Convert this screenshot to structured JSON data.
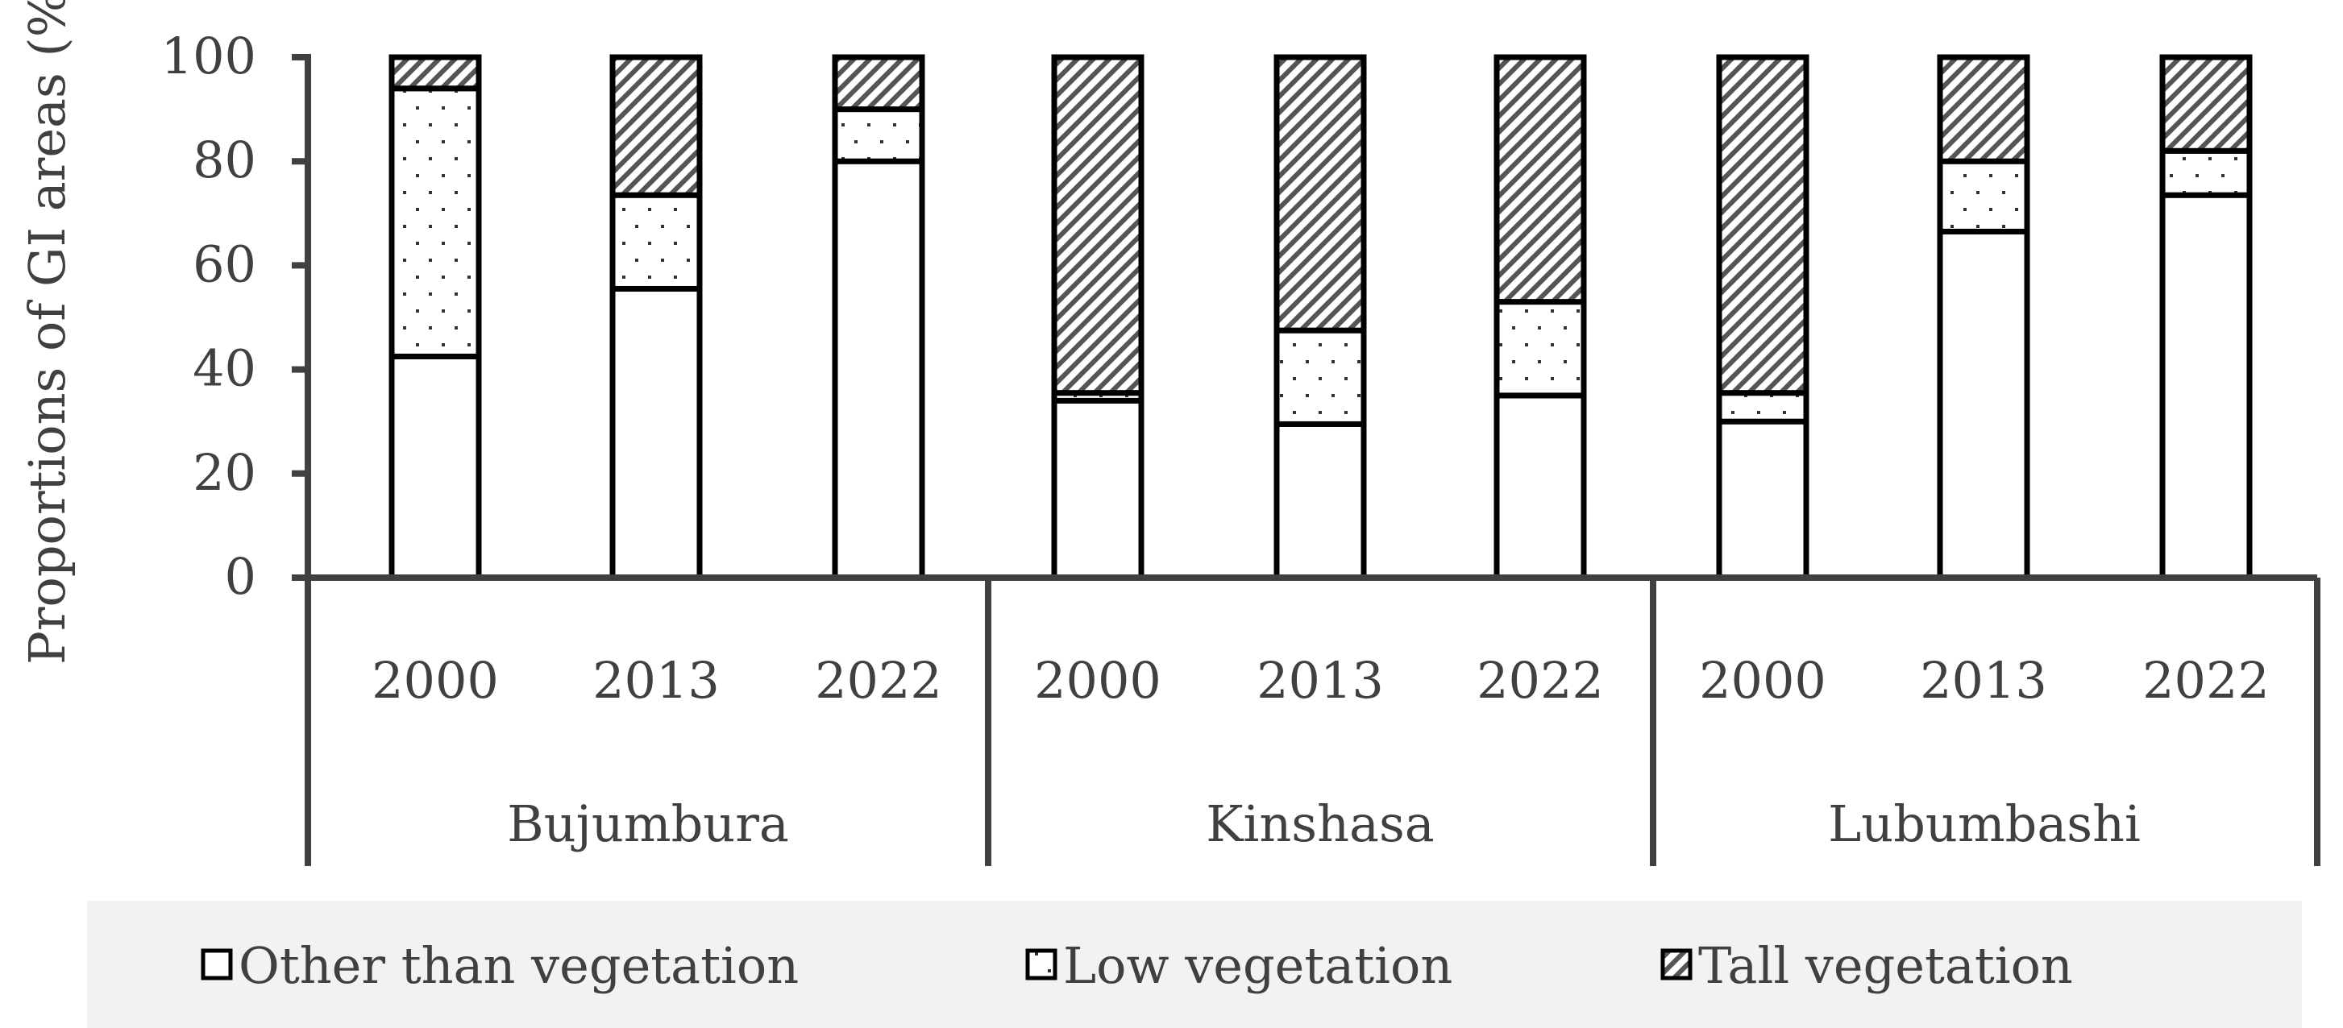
{
  "chart_data": {
    "type": "bar",
    "stacked": true,
    "ylabel": "Proportions of GI areas (%)",
    "ylim": [
      0,
      100
    ],
    "yticks": [
      "0",
      "20",
      "40",
      "60",
      "80",
      "100"
    ],
    "grid": false,
    "legend_position": "bottom",
    "groups": [
      {
        "name": "Bujumbura",
        "categories": [
          "2000",
          "2013",
          "2022"
        ]
      },
      {
        "name": "Kinshasa",
        "categories": [
          "2000",
          "2013",
          "2022"
        ]
      },
      {
        "name": "Lubumbashi",
        "categories": [
          "2000",
          "2013",
          "2022"
        ]
      }
    ],
    "series": [
      {
        "name": "Other than vegetation",
        "pattern": "none",
        "values": [
          42.5,
          55.5,
          80,
          34,
          29.5,
          35,
          30,
          66.5,
          73.5
        ]
      },
      {
        "name": "Low vegetation",
        "pattern": "dots",
        "values": [
          51.5,
          18,
          10,
          1.5,
          18,
          18,
          5.5,
          13.5,
          8.5
        ]
      },
      {
        "name": "Tall vegetation",
        "pattern": "diagonal-hatch",
        "values": [
          6,
          26.5,
          10,
          64.5,
          52.5,
          47,
          64.5,
          20,
          18
        ]
      }
    ],
    "colors": {
      "axis": "#404040",
      "bar_edge": "#000000",
      "legend_bg": "#f2f2f2"
    }
  }
}
